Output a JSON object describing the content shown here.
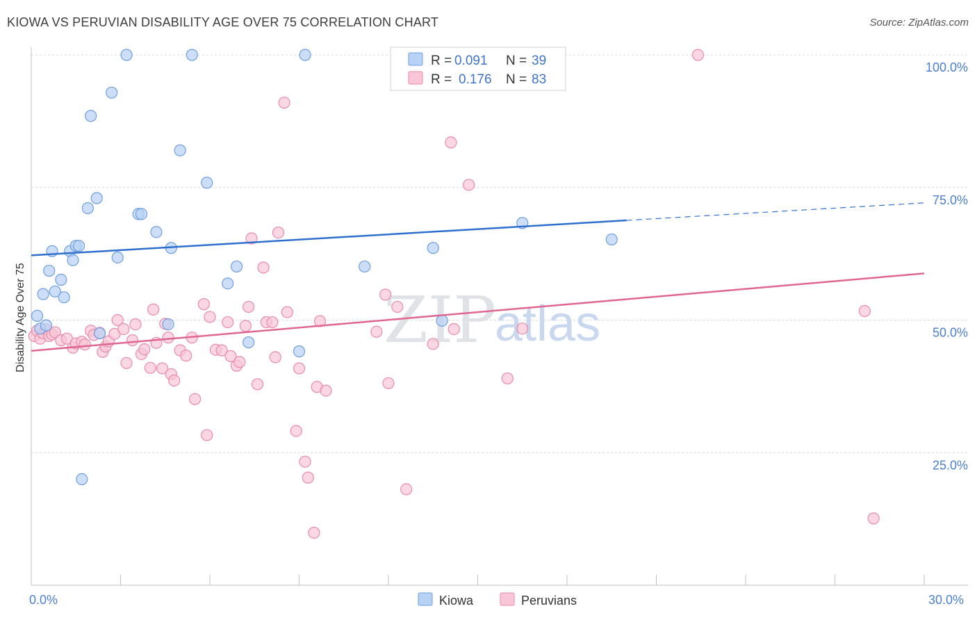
{
  "title": "KIOWA VS PERUVIAN DISABILITY AGE OVER 75 CORRELATION CHART",
  "source": "Source: ZipAtlas.com",
  "watermark": {
    "zip": "ZIP",
    "atlas": "atlas"
  },
  "colors": {
    "kiowa_fill": "#b8d2f5",
    "kiowa_stroke": "#6d9ee0",
    "kiowa_line": "#2e6fce",
    "peru_fill": "#f8c6d6",
    "peru_stroke": "#e98aab",
    "peru_line": "#e06690",
    "tick_label": "#4a7fd0",
    "grid": "#d9d9d9"
  },
  "legend": {
    "rows": [
      {
        "r_label": "R =",
        "r_value": "0.091",
        "n_label": "N =",
        "n_value": "39"
      },
      {
        "r_label": "R =",
        "r_value": "0.176",
        "n_label": "N =",
        "n_value": "83"
      }
    ]
  },
  "chart_data": {
    "type": "scatter",
    "title": "KIOWA VS PERUVIAN DISABILITY AGE OVER 75 CORRELATION CHART",
    "xlabel": "",
    "ylabel": "Disability Age Over 75",
    "xlim": [
      0,
      30
    ],
    "ylim": [
      0,
      100
    ],
    "x_tick_labels": [
      "0.0%",
      "30.0%"
    ],
    "y_ticks": [
      25,
      50,
      75,
      100
    ],
    "y_tick_labels": [
      "25.0%",
      "50.0%",
      "75.0%",
      "100.0%"
    ],
    "grid": "horizontal dashed",
    "legend_position": "top-center",
    "series": [
      {
        "name": "Kiowa",
        "r": 0.091,
        "n": 39,
        "trend": {
          "x0": 0,
          "y0": 62.2,
          "x1": 20,
          "y1": 68.8,
          "dashed_to_x": 30,
          "dashed_to_y": 72.1
        },
        "points": [
          [
            0.2,
            50.8
          ],
          [
            0.3,
            48.4
          ],
          [
            0.4,
            54.9
          ],
          [
            0.5,
            49.0
          ],
          [
            0.6,
            59.3
          ],
          [
            0.7,
            63.0
          ],
          [
            0.8,
            55.4
          ],
          [
            1.0,
            57.6
          ],
          [
            1.1,
            54.3
          ],
          [
            1.3,
            63.0
          ],
          [
            1.4,
            61.3
          ],
          [
            1.5,
            64.0
          ],
          [
            1.6,
            64.0
          ],
          [
            1.7,
            20.0
          ],
          [
            1.9,
            71.1
          ],
          [
            2.0,
            88.5
          ],
          [
            2.2,
            73.0
          ],
          [
            2.3,
            47.5
          ],
          [
            2.7,
            92.9
          ],
          [
            2.9,
            61.8
          ],
          [
            3.2,
            100.0
          ],
          [
            3.6,
            70.0
          ],
          [
            3.7,
            70.0
          ],
          [
            4.2,
            66.6
          ],
          [
            4.6,
            49.2
          ],
          [
            4.7,
            63.6
          ],
          [
            5.0,
            82.0
          ],
          [
            5.4,
            100.0
          ],
          [
            5.9,
            75.9
          ],
          [
            6.6,
            56.9
          ],
          [
            6.9,
            60.1
          ],
          [
            7.3,
            45.8
          ],
          [
            9.0,
            44.1
          ],
          [
            9.2,
            100.0
          ],
          [
            11.2,
            60.1
          ],
          [
            13.5,
            63.6
          ],
          [
            13.8,
            49.9
          ],
          [
            16.5,
            68.3
          ],
          [
            19.5,
            65.2
          ]
        ]
      },
      {
        "name": "Peruvians",
        "r": 0.176,
        "n": 83,
        "trend": {
          "x0": 0,
          "y0": 44.2,
          "x1": 30,
          "y1": 58.8
        },
        "points": [
          [
            0.1,
            47.0
          ],
          [
            0.2,
            48.0
          ],
          [
            0.3,
            46.5
          ],
          [
            0.4,
            47.5
          ],
          [
            0.5,
            48.2
          ],
          [
            0.6,
            47.0
          ],
          [
            0.7,
            47.3
          ],
          [
            0.8,
            47.7
          ],
          [
            1.0,
            46.2
          ],
          [
            1.2,
            46.5
          ],
          [
            1.4,
            44.8
          ],
          [
            1.5,
            45.6
          ],
          [
            1.7,
            45.9
          ],
          [
            1.8,
            45.4
          ],
          [
            2.0,
            48.0
          ],
          [
            2.1,
            47.2
          ],
          [
            2.3,
            47.6
          ],
          [
            2.4,
            44.0
          ],
          [
            2.5,
            45.0
          ],
          [
            2.6,
            46.0
          ],
          [
            2.8,
            47.4
          ],
          [
            2.9,
            50.0
          ],
          [
            3.1,
            48.3
          ],
          [
            3.2,
            41.9
          ],
          [
            3.4,
            46.2
          ],
          [
            3.5,
            49.2
          ],
          [
            3.7,
            43.6
          ],
          [
            3.8,
            44.5
          ],
          [
            4.0,
            41.0
          ],
          [
            4.1,
            52.0
          ],
          [
            4.2,
            45.7
          ],
          [
            4.4,
            40.9
          ],
          [
            4.5,
            49.3
          ],
          [
            4.6,
            46.7
          ],
          [
            4.7,
            39.8
          ],
          [
            4.8,
            38.6
          ],
          [
            5.0,
            44.3
          ],
          [
            5.2,
            43.3
          ],
          [
            5.4,
            46.7
          ],
          [
            5.5,
            35.1
          ],
          [
            5.8,
            53.0
          ],
          [
            5.9,
            28.3
          ],
          [
            6.0,
            50.6
          ],
          [
            6.2,
            44.4
          ],
          [
            6.4,
            44.3
          ],
          [
            6.6,
            49.6
          ],
          [
            6.7,
            43.2
          ],
          [
            6.9,
            41.4
          ],
          [
            7.0,
            42.1
          ],
          [
            7.2,
            48.9
          ],
          [
            7.3,
            52.5
          ],
          [
            7.4,
            65.4
          ],
          [
            7.6,
            37.9
          ],
          [
            7.8,
            59.9
          ],
          [
            7.9,
            49.6
          ],
          [
            8.1,
            49.6
          ],
          [
            8.2,
            43.0
          ],
          [
            8.3,
            66.5
          ],
          [
            8.5,
            91.0
          ],
          [
            8.6,
            51.5
          ],
          [
            8.9,
            29.1
          ],
          [
            9.0,
            40.9
          ],
          [
            9.2,
            23.3
          ],
          [
            9.3,
            20.3
          ],
          [
            9.5,
            9.9
          ],
          [
            9.6,
            37.4
          ],
          [
            9.7,
            49.8
          ],
          [
            9.9,
            36.7
          ],
          [
            11.6,
            47.8
          ],
          [
            11.9,
            54.8
          ],
          [
            12.0,
            38.1
          ],
          [
            12.3,
            52.5
          ],
          [
            12.6,
            18.1
          ],
          [
            13.5,
            45.5
          ],
          [
            13.9,
            100.0
          ],
          [
            14.1,
            83.5
          ],
          [
            14.2,
            48.3
          ],
          [
            14.7,
            75.5
          ],
          [
            16.0,
            39.0
          ],
          [
            16.5,
            48.4
          ],
          [
            22.4,
            100.0
          ],
          [
            28.0,
            51.7
          ],
          [
            28.3,
            12.6
          ]
        ]
      }
    ]
  },
  "bottom_legend": {
    "kiowa": "Kiowa",
    "peruvians": "Peruvians"
  }
}
